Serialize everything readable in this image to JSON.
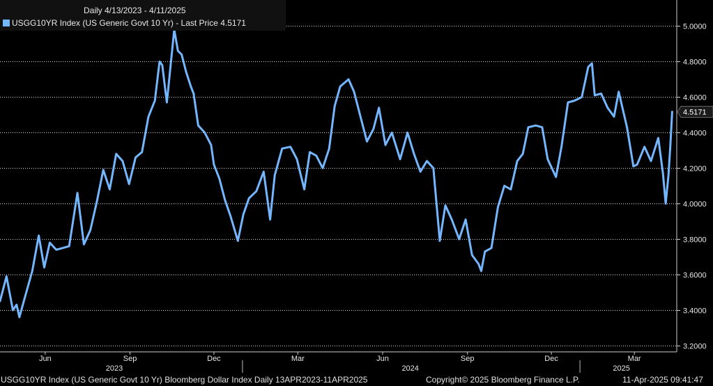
{
  "chart_data": {
    "type": "line",
    "title": "Daily 4/13/2023 - 4/11/2025",
    "series": [
      {
        "name": "USGG10YR Index (US Generic Govt 10 Yr) - Last Price 4.5171",
        "points": [
          [
            "2023-04-13",
            3.45
          ],
          [
            "2023-04-20",
            3.59
          ],
          [
            "2023-04-27",
            3.4
          ],
          [
            "2023-05-01",
            3.43
          ],
          [
            "2023-05-04",
            3.36
          ],
          [
            "2023-05-11",
            3.49
          ],
          [
            "2023-05-18",
            3.62
          ],
          [
            "2023-05-25",
            3.82
          ],
          [
            "2023-05-31",
            3.64
          ],
          [
            "2023-06-06",
            3.78
          ],
          [
            "2023-06-13",
            3.74
          ],
          [
            "2023-06-20",
            3.75
          ],
          [
            "2023-06-27",
            3.76
          ],
          [
            "2023-07-06",
            4.06
          ],
          [
            "2023-07-13",
            3.77
          ],
          [
            "2023-07-20",
            3.85
          ],
          [
            "2023-07-27",
            4.01
          ],
          [
            "2023-08-03",
            4.19
          ],
          [
            "2023-08-10",
            4.08
          ],
          [
            "2023-08-17",
            4.28
          ],
          [
            "2023-08-24",
            4.24
          ],
          [
            "2023-08-31",
            4.11
          ],
          [
            "2023-09-07",
            4.26
          ],
          [
            "2023-09-14",
            4.29
          ],
          [
            "2023-09-21",
            4.49
          ],
          [
            "2023-09-28",
            4.58
          ],
          [
            "2023-10-03",
            4.8
          ],
          [
            "2023-10-06",
            4.78
          ],
          [
            "2023-10-11",
            4.57
          ],
          [
            "2023-10-19",
            4.98
          ],
          [
            "2023-10-23",
            4.86
          ],
          [
            "2023-10-27",
            4.84
          ],
          [
            "2023-11-01",
            4.74
          ],
          [
            "2023-11-06",
            4.66
          ],
          [
            "2023-11-09",
            4.62
          ],
          [
            "2023-11-14",
            4.44
          ],
          [
            "2023-11-21",
            4.4
          ],
          [
            "2023-11-28",
            4.33
          ],
          [
            "2023-12-01",
            4.22
          ],
          [
            "2023-12-07",
            4.14
          ],
          [
            "2023-12-13",
            4.02
          ],
          [
            "2023-12-19",
            3.93
          ],
          [
            "2023-12-27",
            3.79
          ],
          [
            "2024-01-02",
            3.94
          ],
          [
            "2024-01-08",
            4.03
          ],
          [
            "2024-01-16",
            4.07
          ],
          [
            "2024-01-24",
            4.18
          ],
          [
            "2024-01-31",
            3.91
          ],
          [
            "2024-02-05",
            4.16
          ],
          [
            "2024-02-13",
            4.31
          ],
          [
            "2024-02-22",
            4.32
          ],
          [
            "2024-02-29",
            4.25
          ],
          [
            "2024-03-08",
            4.08
          ],
          [
            "2024-03-14",
            4.29
          ],
          [
            "2024-03-21",
            4.27
          ],
          [
            "2024-03-28",
            4.2
          ],
          [
            "2024-04-04",
            4.31
          ],
          [
            "2024-04-10",
            4.55
          ],
          [
            "2024-04-16",
            4.66
          ],
          [
            "2024-04-25",
            4.7
          ],
          [
            "2024-05-01",
            4.63
          ],
          [
            "2024-05-08",
            4.49
          ],
          [
            "2024-05-15",
            4.35
          ],
          [
            "2024-05-22",
            4.42
          ],
          [
            "2024-05-28",
            4.54
          ],
          [
            "2024-06-04",
            4.33
          ],
          [
            "2024-06-11",
            4.4
          ],
          [
            "2024-06-20",
            4.25
          ],
          [
            "2024-06-28",
            4.4
          ],
          [
            "2024-07-05",
            4.28
          ],
          [
            "2024-07-12",
            4.18
          ],
          [
            "2024-07-19",
            4.24
          ],
          [
            "2024-07-26",
            4.2
          ],
          [
            "2024-08-02",
            3.79
          ],
          [
            "2024-08-08",
            3.99
          ],
          [
            "2024-08-15",
            3.91
          ],
          [
            "2024-08-23",
            3.8
          ],
          [
            "2024-08-30",
            3.91
          ],
          [
            "2024-09-06",
            3.71
          ],
          [
            "2024-09-13",
            3.66
          ],
          [
            "2024-09-16",
            3.62
          ],
          [
            "2024-09-20",
            3.73
          ],
          [
            "2024-09-27",
            3.75
          ],
          [
            "2024-10-04",
            3.98
          ],
          [
            "2024-10-11",
            4.1
          ],
          [
            "2024-10-18",
            4.08
          ],
          [
            "2024-10-25",
            4.24
          ],
          [
            "2024-10-31",
            4.28
          ],
          [
            "2024-11-06",
            4.43
          ],
          [
            "2024-11-14",
            4.44
          ],
          [
            "2024-11-21",
            4.43
          ],
          [
            "2024-11-27",
            4.25
          ],
          [
            "2024-12-06",
            4.15
          ],
          [
            "2024-12-12",
            4.32
          ],
          [
            "2024-12-19",
            4.57
          ],
          [
            "2024-12-26",
            4.58
          ],
          [
            "2025-01-03",
            4.6
          ],
          [
            "2025-01-10",
            4.77
          ],
          [
            "2025-01-14",
            4.79
          ],
          [
            "2025-01-17",
            4.61
          ],
          [
            "2025-01-24",
            4.62
          ],
          [
            "2025-01-31",
            4.54
          ],
          [
            "2025-02-07",
            4.49
          ],
          [
            "2025-02-12",
            4.63
          ],
          [
            "2025-02-21",
            4.43
          ],
          [
            "2025-02-28",
            4.21
          ],
          [
            "2025-03-04",
            4.22
          ],
          [
            "2025-03-12",
            4.32
          ],
          [
            "2025-03-19",
            4.24
          ],
          [
            "2025-03-27",
            4.37
          ],
          [
            "2025-04-01",
            4.17
          ],
          [
            "2025-04-04",
            4.0
          ],
          [
            "2025-04-07",
            4.16
          ],
          [
            "2025-04-09",
            4.32
          ],
          [
            "2025-04-11",
            4.5171
          ]
        ]
      }
    ],
    "last_value_label": "4.5171",
    "ylim": [
      3.2,
      5.1
    ],
    "y_ticks": [
      "3.2000",
      "3.4000",
      "3.6000",
      "3.8000",
      "4.0000",
      "4.2000",
      "4.4000",
      "4.6000",
      "4.8000",
      "5.0000"
    ],
    "x_tick_labels": [
      {
        "date": "2023-06-01",
        "label": "Jun"
      },
      {
        "date": "2023-09-01",
        "label": "Sep"
      },
      {
        "date": "2023-12-01",
        "label": "Dec"
      },
      {
        "date": "2024-03-01",
        "label": "Mar"
      },
      {
        "date": "2024-06-01",
        "label": "Jun"
      },
      {
        "date": "2024-09-01",
        "label": "Sep"
      },
      {
        "date": "2024-12-01",
        "label": "Dec"
      },
      {
        "date": "2025-03-01",
        "label": "Mar"
      }
    ],
    "year_labels": [
      {
        "date": "2023-08-15",
        "label": "2023"
      },
      {
        "date": "2024-07-01",
        "label": "2024"
      },
      {
        "date": "2025-02-15",
        "label": "2025"
      }
    ],
    "year_dividers": [
      "2024-01-01",
      "2025-01-01"
    ],
    "x_range": [
      "2023-04-13",
      "2025-04-16"
    ],
    "grid": true,
    "line_color": "#75b7ff",
    "grid_color": "#ffffff"
  },
  "footer": {
    "left": "USGG10YR Index (US Generic Govt 10 Yr) Bloomberg Dollar Index  Daily 13APR2023-11APR2025",
    "center": "Copyright© 2025 Bloomberg Finance L.P.",
    "right": "11-Apr-2025 09:41:47"
  }
}
